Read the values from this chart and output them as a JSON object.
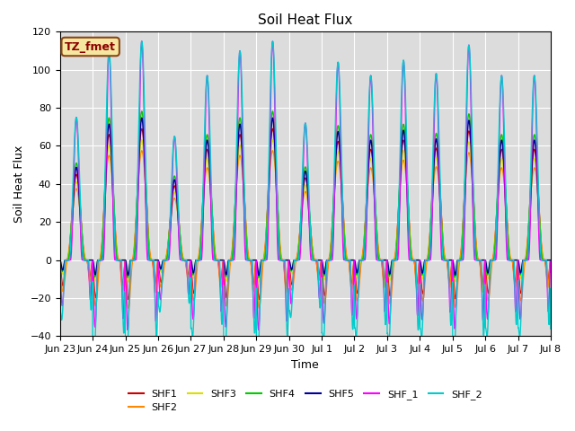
{
  "title": "Soil Heat Flux",
  "xlabel": "Time",
  "ylabel": "Soil Heat Flux",
  "ylim": [
    -40,
    120
  ],
  "yticks": [
    -40,
    -20,
    0,
    20,
    40,
    60,
    80,
    100,
    120
  ],
  "bg_color": "#dcdcdc",
  "colors": {
    "SHF1": "#cc0000",
    "SHF2": "#ff8800",
    "SHF3": "#dddd00",
    "SHF4": "#00cc00",
    "SHF5": "#000099",
    "SHF_1": "#ff00ff",
    "SHF_2": "#00cccc"
  },
  "legend_label": "TZ_fmet",
  "xtick_labels": [
    "Jun 23",
    "Jun 24",
    "Jun 25",
    "Jun 26",
    "Jun 27",
    "Jun 28",
    "Jun 29",
    "Jun 30",
    "Jul 1",
    "Jul 2",
    "Jul 3",
    "Jul 4",
    "Jul 5",
    "Jul 6",
    "Jul 7",
    "Jul 8"
  ],
  "day_amps": [
    75,
    110,
    115,
    65,
    97,
    110,
    115,
    72,
    104,
    97,
    105,
    98,
    113,
    97,
    97
  ],
  "n_days": 15,
  "pts_per_day": 144
}
